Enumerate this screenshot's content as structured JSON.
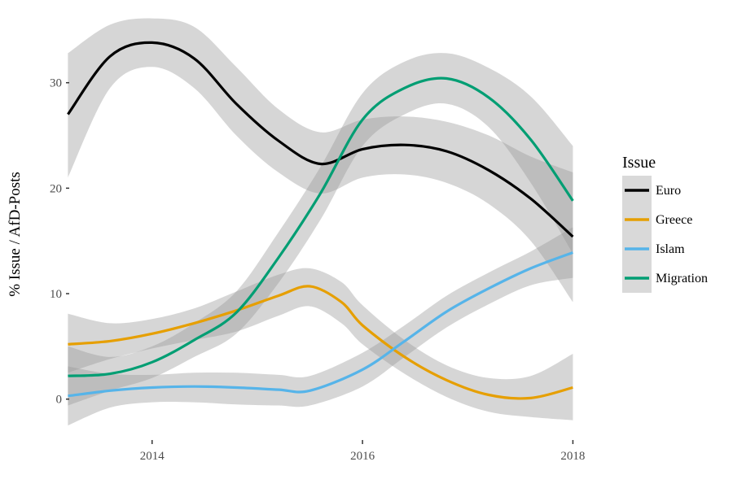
{
  "chart_data": {
    "type": "line",
    "title": "",
    "xlabel": "",
    "ylabel": "% Issue / AfD-Posts",
    "x_ticks": [
      2014,
      2016,
      2018
    ],
    "y_ticks": [
      0,
      10,
      20,
      30
    ],
    "xlim": [
      2013.22,
      2018.02
    ],
    "ylim": [
      -3.8,
      36.3
    ],
    "grid": false,
    "legend": {
      "title": "Issue",
      "placement": "right"
    },
    "series": [
      {
        "name": "Euro",
        "color": "#000000",
        "x": [
          2013.2,
          2013.6,
          2014.0,
          2014.4,
          2014.8,
          2015.2,
          2015.6,
          2016.0,
          2016.4,
          2016.8,
          2017.2,
          2017.6,
          2018.0
        ],
        "y": [
          27.0,
          32.5,
          33.8,
          32.3,
          28.0,
          24.5,
          22.3,
          23.7,
          24.1,
          23.5,
          21.7,
          19.0,
          15.4
        ],
        "lower": [
          21.0,
          29.5,
          31.5,
          29.5,
          25.0,
          21.5,
          19.5,
          21.0,
          21.3,
          20.5,
          18.5,
          15.0,
          9.2
        ],
        "upper": [
          32.8,
          35.5,
          36.1,
          35.3,
          31.5,
          27.5,
          25.3,
          26.5,
          26.8,
          26.3,
          25.0,
          23.0,
          21.5
        ]
      },
      {
        "name": "Greece",
        "color": "#e69f00",
        "x": [
          2013.2,
          2013.6,
          2014.0,
          2014.4,
          2014.8,
          2015.2,
          2015.5,
          2015.8,
          2016.0,
          2016.4,
          2016.8,
          2017.2,
          2017.6,
          2018.0
        ],
        "y": [
          5.2,
          5.5,
          6.2,
          7.2,
          8.4,
          9.8,
          10.7,
          9.2,
          7.0,
          4.0,
          1.8,
          0.4,
          0.1,
          1.1
        ],
        "lower": [
          2.5,
          3.8,
          4.8,
          5.6,
          6.4,
          7.9,
          8.8,
          7.2,
          5.2,
          2.4,
          0.2,
          -1.2,
          -1.7,
          -2.0
        ],
        "upper": [
          8.1,
          7.2,
          7.6,
          8.6,
          10.2,
          11.8,
          12.4,
          11.1,
          8.9,
          5.6,
          3.2,
          2.0,
          2.2,
          4.3
        ]
      },
      {
        "name": "Islam",
        "color": "#56b4e9",
        "x": [
          2013.2,
          2013.6,
          2014.0,
          2014.4,
          2014.8,
          2015.2,
          2015.5,
          2016.0,
          2016.4,
          2016.8,
          2017.2,
          2017.6,
          2018.0
        ],
        "y": [
          0.3,
          0.8,
          1.1,
          1.2,
          1.1,
          0.9,
          0.8,
          2.8,
          5.5,
          8.3,
          10.5,
          12.4,
          13.9
        ],
        "lower": [
          -2.5,
          -0.8,
          -0.3,
          -0.3,
          -0.5,
          -0.6,
          -0.6,
          1.2,
          4.0,
          6.8,
          9.0,
          10.8,
          11.5
        ],
        "upper": [
          3.1,
          2.4,
          2.3,
          2.5,
          2.5,
          2.3,
          2.2,
          4.4,
          7.0,
          9.8,
          12.0,
          14.0,
          16.3
        ]
      },
      {
        "name": "Migration",
        "color": "#009e73",
        "x": [
          2013.2,
          2013.6,
          2014.0,
          2014.4,
          2014.8,
          2015.2,
          2015.6,
          2016.0,
          2016.4,
          2016.8,
          2017.2,
          2017.6,
          2018.0
        ],
        "y": [
          2.2,
          2.4,
          3.5,
          5.6,
          8.2,
          13.4,
          19.5,
          26.5,
          29.5,
          30.4,
          28.6,
          24.6,
          18.8
        ],
        "lower": [
          -0.6,
          0.8,
          2.0,
          4.0,
          6.2,
          11.0,
          17.0,
          24.0,
          27.0,
          28.0,
          25.8,
          20.5,
          13.8
        ],
        "upper": [
          5.0,
          4.0,
          5.0,
          7.2,
          10.2,
          15.8,
          22.0,
          29.0,
          32.0,
          32.8,
          31.4,
          28.7,
          24.0
        ]
      }
    ]
  }
}
